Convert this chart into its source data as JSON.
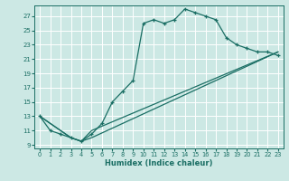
{
  "xlabel": "Humidex (Indice chaleur)",
  "bg_color": "#cce8e4",
  "grid_color": "#ffffff",
  "line_color": "#1a6e64",
  "xlim": [
    -0.5,
    23.5
  ],
  "ylim": [
    8.5,
    28.5
  ],
  "xticks": [
    0,
    1,
    2,
    3,
    4,
    5,
    6,
    7,
    8,
    9,
    10,
    11,
    12,
    13,
    14,
    15,
    16,
    17,
    18,
    19,
    20,
    21,
    22,
    23
  ],
  "yticks": [
    9,
    11,
    13,
    15,
    17,
    19,
    21,
    23,
    25,
    27
  ],
  "line1_x": [
    0,
    1,
    2,
    3,
    4,
    5,
    6,
    7,
    8,
    9,
    10,
    11,
    12,
    13,
    14,
    15,
    16,
    17,
    18,
    19,
    20,
    21,
    22,
    23
  ],
  "line1_y": [
    13,
    11,
    10.5,
    10,
    9.5,
    10.5,
    12,
    15,
    16.5,
    18,
    26,
    26.5,
    26,
    26.5,
    28,
    27.5,
    27,
    26.5,
    24,
    23,
    22.5,
    22,
    22,
    21.5
  ],
  "line2_x": [
    0,
    3,
    4,
    5,
    23
  ],
  "line2_y": [
    13,
    10,
    9.5,
    10,
    22
  ],
  "line3_x": [
    0,
    3,
    4,
    5,
    23
  ],
  "line3_y": [
    13,
    10,
    9.5,
    11,
    22
  ]
}
